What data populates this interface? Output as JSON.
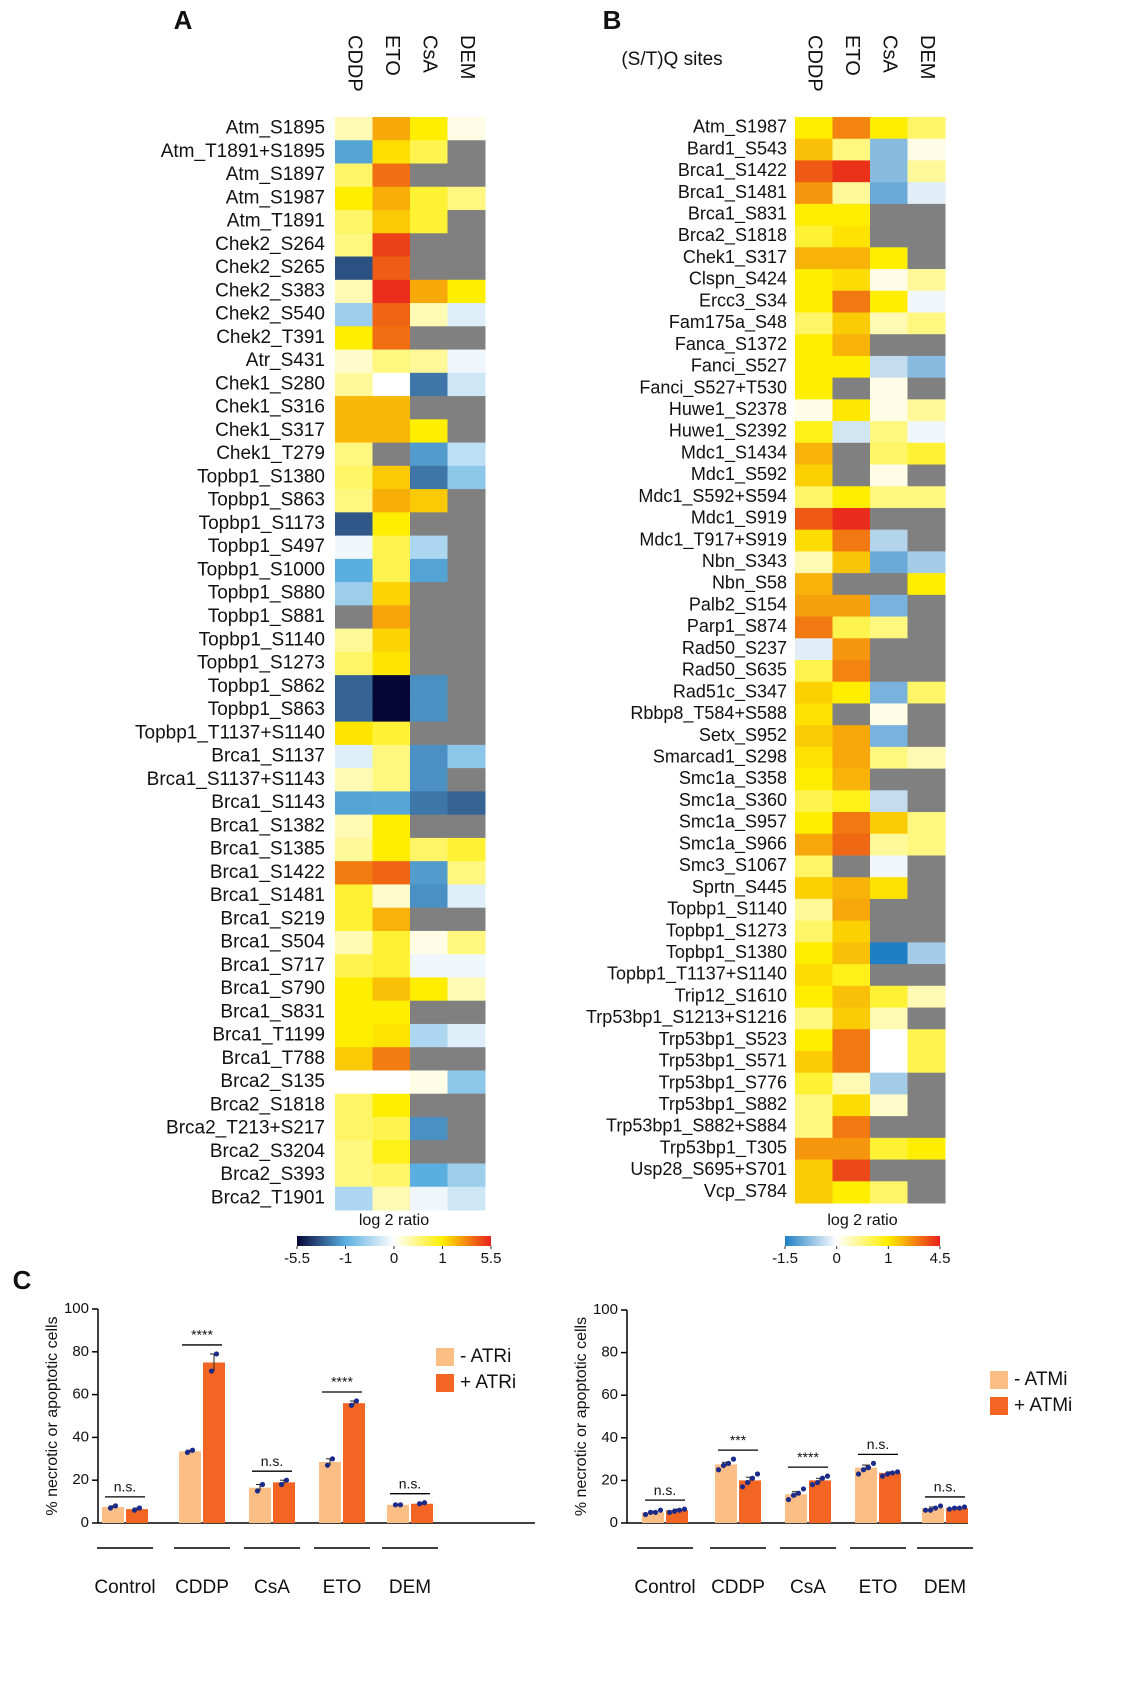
{
  "chart_data": [
    {
      "type": "heatmap",
      "panel": "A",
      "columns": [
        "CDDP",
        "ETO",
        "CsA",
        "DEM"
      ],
      "rows": [
        "Atm_S1895",
        "Atm_T1891+S1895",
        "Atm_S1897",
        "Atm_S1987",
        "Atm_T1891",
        "Chek2_S264",
        "Chek2_S265",
        "Chek2_S383",
        "Chek2_S540",
        "Chek2_T391",
        "Atr_S431",
        "Chek1_S280",
        "Chek1_S316",
        "Chek1_S317",
        "Chek1_T279",
        "Topbp1_S1380",
        "Topbp1_S863",
        "Topbp1_S1173",
        "Topbp1_S497",
        "Topbp1_S1000",
        "Topbp1_S880",
        "Topbp1_S881",
        "Topbp1_S1140",
        "Topbp1_S1273",
        "Topbp1_S862",
        "Topbp1_S863",
        "Topbp1_T1137+S1140",
        "Brca1_S1137",
        "Brca1_S1137+S1143",
        "Brca1_S1143",
        "Brca1_S1382",
        "Brca1_S1385",
        "Brca1_S1422",
        "Brca1_S1481",
        "Brca1_S219",
        "Brca1_S504",
        "Brca1_S717",
        "Brca1_S790",
        "Brca1_S831",
        "Brca1_T1199",
        "Brca1_T788",
        "Brca2_S135",
        "Brca2_S1818",
        "Brca2_T213+S217",
        "Brca2_S3204",
        "Brca2_S393",
        "Brca2_T1901"
      ],
      "values": [
        [
          0.3,
          2.5,
          1,
          0.1
        ],
        [
          -1.3,
          1.3,
          0.7,
          null
        ],
        [
          0.6,
          3.8,
          null,
          null
        ],
        [
          1,
          2.4,
          0.8,
          0.5
        ],
        [
          0.6,
          1.8,
          0.8,
          null
        ],
        [
          0.5,
          4.8,
          null,
          null
        ],
        [
          -3.5,
          4.2,
          null,
          null
        ],
        [
          0.3,
          5.2,
          2.5,
          1
        ],
        [
          -0.6,
          4,
          0.3,
          -0.2
        ],
        [
          1,
          3.8,
          null,
          null
        ],
        [
          0.2,
          0.5,
          0.4,
          -0.1
        ],
        [
          0.4,
          0,
          -2.5,
          -0.3
        ],
        [
          2.2,
          2.2,
          null,
          null
        ],
        [
          2.2,
          2.2,
          1,
          null
        ],
        [
          0.5,
          null,
          -1.5,
          -0.4
        ],
        [
          0.6,
          1.8,
          -2.5,
          -0.7
        ],
        [
          0.5,
          2.4,
          1.8,
          null
        ],
        [
          -3.3,
          1,
          null,
          null
        ],
        [
          -0.1,
          0.7,
          -0.5,
          null
        ],
        [
          -1,
          0.7,
          -1.3,
          null
        ],
        [
          -0.6,
          1.6,
          null,
          null
        ],
        [
          null,
          2.6,
          null,
          null
        ],
        [
          0.4,
          1.6,
          null,
          null
        ],
        [
          0.6,
          1.2,
          null,
          null
        ],
        [
          -3,
          -5.5,
          -1.8,
          null
        ],
        [
          -3,
          -5.5,
          -1.8,
          null
        ],
        [
          1.2,
          0.8,
          null,
          null
        ],
        [
          -0.2,
          0.5,
          -1.8,
          -0.7
        ],
        [
          0.3,
          0.5,
          -1.8,
          null
        ],
        [
          -1.3,
          -1.2,
          -2.5,
          -3
        ],
        [
          0.3,
          1,
          null,
          null
        ],
        [
          0.4,
          1,
          0.6,
          0.8
        ],
        [
          3.5,
          4,
          -1.5,
          0.5
        ],
        [
          0.8,
          0.2,
          -1.8,
          -0.2
        ],
        [
          0.8,
          2.3,
          null,
          null
        ],
        [
          0.3,
          0.8,
          0.1,
          0.5
        ],
        [
          0.7,
          0.8,
          -0.1,
          -0.1
        ],
        [
          1,
          2,
          1,
          0.3
        ],
        [
          1,
          1,
          null,
          null
        ],
        [
          1,
          1.2,
          -0.5,
          -0.2
        ],
        [
          1.8,
          3.5,
          null,
          null
        ],
        [
          0,
          0,
          0.1,
          -0.7
        ],
        [
          0.6,
          1,
          null,
          null
        ],
        [
          0.6,
          0.7,
          -1.8,
          null
        ],
        [
          0.5,
          0.9,
          null,
          null
        ],
        [
          0.5,
          0.6,
          -1,
          -0.6
        ],
        [
          -0.5,
          0.3,
          -0.1,
          -0.3
        ]
      ],
      "colorbar_label": "log 2 ratio",
      "cticks": [
        -5.5,
        -1,
        0,
        1,
        5.5
      ],
      "ccolors": [
        "#060636",
        "#5aaee0",
        "#ffffff",
        "#ffee00",
        "#e8201e"
      ],
      "missing_color": "#808080"
    },
    {
      "type": "heatmap",
      "panel": "B",
      "row_header": "(S/T)Q sites",
      "columns": [
        "CDDP",
        "ETO",
        "CsA",
        "DEM"
      ],
      "rows": [
        "Atm_S1987",
        "Bard1_S543",
        "Brca1_S1422",
        "Brca1_S1481",
        "Brca1_S831",
        "Brca2_S1818",
        "Chek1_S317",
        "Clspn_S424",
        "Ercc3_S34",
        "Fam175a_S48",
        "Fanca_S1372",
        "Fanci_S527",
        "Fanci_S527+T530",
        "Huwe1_S2378",
        "Huwe1_S2392",
        "Mdc1_S1434",
        "Mdc1_S592",
        "Mdc1_S592+S594",
        "Mdc1_S919",
        "Mdc1_T917+S919",
        "Nbn_S343",
        "Nbn_S58",
        "Palb2_S154",
        "Parp1_S874",
        "Rad50_S237",
        "Rad50_S635",
        "Rad51c_S347",
        "Rbbp8_T584+S588",
        "Setx_S952",
        "Smarcad1_S298",
        "Smc1a_S358",
        "Smc1a_S360",
        "Smc1a_S957",
        "Smc1a_S966",
        "Smc3_S1067",
        "Sprtn_S445",
        "Topbp1_S1140",
        "Topbp1_S1273",
        "Topbp1_S1380",
        "Topbp1_T1137+S1140",
        "Trip12_S1610",
        "Trp53bp1_S1213+S1216",
        "Trp53bp1_S523",
        "Trp53bp1_S571",
        "Trp53bp1_S776",
        "Trp53bp1_S882",
        "Trp53bp1_S882+S884",
        "Trp53bp1_T305",
        "Usp28_S695+S701",
        "Vcp_S784"
      ],
      "values": [
        [
          1,
          2.8,
          1,
          0.6
        ],
        [
          1.8,
          0.5,
          -0.8,
          0.1
        ],
        [
          3.5,
          4.2,
          -0.8,
          0.4
        ],
        [
          2.5,
          0.4,
          -1,
          -0.2
        ],
        [
          1,
          1,
          null,
          null
        ],
        [
          0.8,
          1.2,
          null,
          null
        ],
        [
          2,
          2,
          1,
          null
        ],
        [
          1,
          1.3,
          0.1,
          0.4
        ],
        [
          1,
          3,
          1,
          -0.1
        ],
        [
          0.6,
          1.6,
          0.3,
          0.5
        ],
        [
          1,
          2,
          null,
          null
        ],
        [
          1,
          1,
          -0.4,
          -0.8
        ],
        [
          1,
          null,
          0.1,
          null
        ],
        [
          0.1,
          1.1,
          0.1,
          0.4
        ],
        [
          0.9,
          -0.3,
          0.5,
          -0.1
        ],
        [
          2,
          null,
          0.6,
          0.8
        ],
        [
          1.5,
          null,
          0.1,
          null
        ],
        [
          0.6,
          1,
          0.5,
          0.5
        ],
        [
          3.5,
          4.3,
          null,
          null
        ],
        [
          1.3,
          3,
          -0.5,
          null
        ],
        [
          0.3,
          1.7,
          -1,
          -0.6
        ],
        [
          2,
          null,
          null,
          1
        ],
        [
          2.3,
          2.3,
          -0.9,
          null
        ],
        [
          3,
          0.7,
          0.5,
          null
        ],
        [
          -0.2,
          2.5,
          null,
          null
        ],
        [
          0.7,
          2.8,
          null,
          null
        ],
        [
          1.5,
          1,
          -0.9,
          0.6
        ],
        [
          1.2,
          null,
          0.1,
          null
        ],
        [
          1.6,
          2.2,
          -0.9,
          null
        ],
        [
          1.2,
          2.2,
          0.5,
          0.3
        ],
        [
          1,
          2,
          null,
          null
        ],
        [
          0.7,
          0.9,
          -0.4,
          null
        ],
        [
          1,
          3,
          1.6,
          0.5
        ],
        [
          2.2,
          3.3,
          0.4,
          0.5
        ],
        [
          0.6,
          null,
          -0.1,
          null
        ],
        [
          1.5,
          2,
          1.2,
          null
        ],
        [
          0.4,
          2.2,
          null,
          null
        ],
        [
          0.6,
          1.5,
          null,
          null
        ],
        [
          1,
          1.8,
          -1.5,
          -0.6
        ],
        [
          1.3,
          0.9,
          null,
          null
        ],
        [
          1,
          1.8,
          0.8,
          0.3
        ],
        [
          0.5,
          1.6,
          0.3,
          null
        ],
        [
          1,
          3,
          0,
          0.7
        ],
        [
          1.6,
          3,
          0,
          0.7
        ],
        [
          0.8,
          0.3,
          -0.6,
          null
        ],
        [
          0.5,
          1.3,
          0.2,
          null
        ],
        [
          0.5,
          3,
          null,
          null
        ],
        [
          2.5,
          2.5,
          0.8,
          1
        ],
        [
          1.6,
          3.8,
          null,
          null
        ],
        [
          1.6,
          1,
          0.6,
          null
        ]
      ],
      "colorbar_label": "log 2 ratio",
      "cticks": [
        -1.5,
        0,
        1,
        4.5
      ],
      "ccolors": [
        "#1f7fc4",
        "#ffffff",
        "#ffee00",
        "#e8201e"
      ],
      "missing_color": "#808080"
    },
    {
      "type": "bar",
      "panel": "C",
      "ylabel": "% necrotic or apoptotic cells",
      "categories": [
        "Control",
        "CDDP",
        "CsA",
        "ETO",
        "DEM"
      ],
      "ylim": [
        0,
        100
      ],
      "yticks": [
        0,
        20,
        40,
        60,
        80,
        100
      ],
      "legend": "upper right",
      "point_color": "#1c2a8a",
      "series": [
        {
          "name": "- ATRi",
          "color": "#fbbf85",
          "values": [
            7.5,
            33.5,
            16.5,
            28.5,
            8.5
          ],
          "errors": [
            0.5,
            0.5,
            1.5,
            1.5,
            0.3
          ],
          "points": [
            [
              7,
              8
            ],
            [
              33,
              34
            ],
            [
              15,
              18
            ],
            [
              27,
              30
            ],
            [
              8.5,
              8.5
            ]
          ]
        },
        {
          "name": "+ ATRi",
          "color": "#f26522",
          "values": [
            6.5,
            75,
            19,
            56,
            9
          ],
          "errors": [
            0.5,
            4,
            1,
            1,
            0.5
          ],
          "points": [
            [
              6,
              7
            ],
            [
              71,
              79
            ],
            [
              18,
              20
            ],
            [
              55,
              57
            ],
            [
              9,
              9.5
            ]
          ]
        }
      ],
      "annotations": [
        "n.s.",
        "****",
        "n.s.",
        "****",
        "n.s."
      ]
    },
    {
      "type": "bar",
      "ylabel": "% necrotic or apoptotic cells",
      "categories": [
        "Control",
        "CDDP",
        "CsA",
        "ETO",
        "DEM"
      ],
      "ylim": [
        0,
        100
      ],
      "yticks": [
        0,
        20,
        40,
        60,
        80,
        100
      ],
      "legend": "upper right",
      "point_color": "#1c2a8a",
      "series": [
        {
          "name": "- ATMi",
          "color": "#fbbf85",
          "values": [
            5,
            27.5,
            13.5,
            26,
            7
          ],
          "errors": [
            0.5,
            1,
            1.2,
            1.2,
            0.5
          ],
          "points": [
            [
              4,
              5,
              5,
              6
            ],
            [
              25,
              27,
              28,
              30
            ],
            [
              11,
              13,
              14,
              16
            ],
            [
              23,
              25,
              26,
              28
            ],
            [
              6,
              6,
              7,
              8
            ]
          ]
        },
        {
          "name": "+ ATMi",
          "color": "#f26522",
          "values": [
            6,
            20,
            20,
            23.5,
            7
          ],
          "errors": [
            0.5,
            1.5,
            1,
            0.5,
            0.3
          ],
          "points": [
            [
              5,
              5.5,
              6,
              6.5
            ],
            [
              17,
              19,
              21,
              23
            ],
            [
              18,
              19,
              21,
              22
            ],
            [
              22,
              23,
              23.5,
              24
            ],
            [
              6.5,
              7,
              7,
              7.5
            ]
          ]
        }
      ],
      "annotations": [
        "n.s.",
        "***",
        "****",
        "n.s.",
        "n.s."
      ]
    }
  ]
}
